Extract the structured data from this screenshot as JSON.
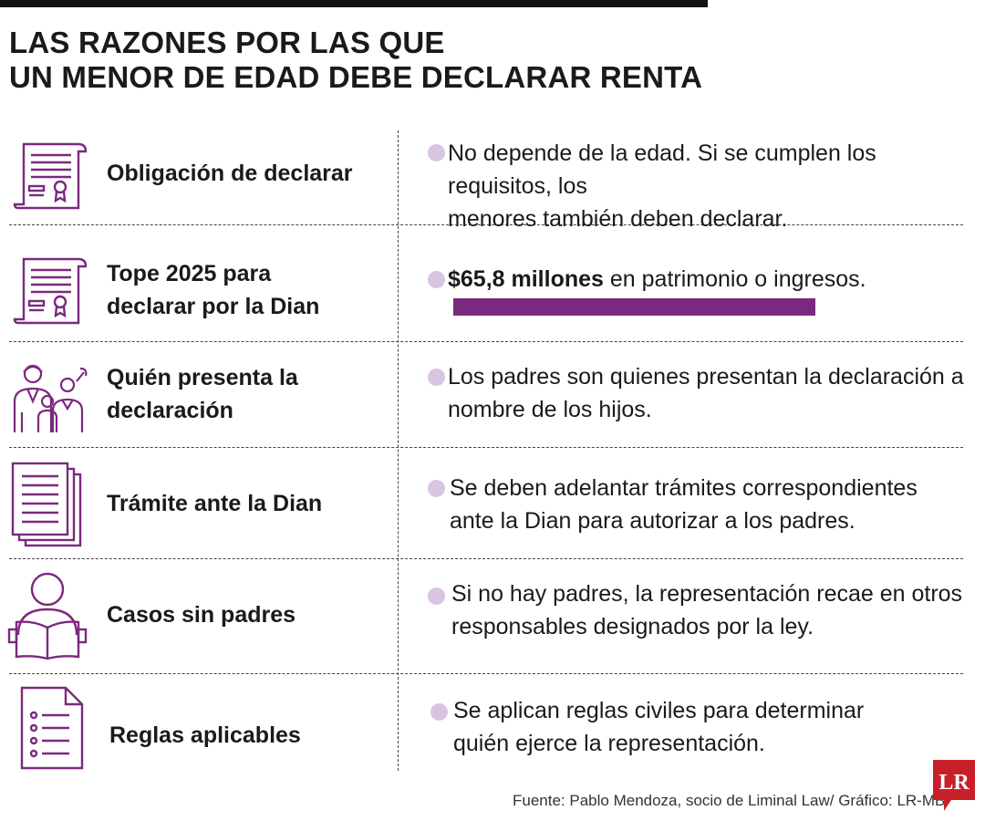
{
  "title": {
    "line1": "LAS RAZONES POR LAS QUE",
    "line2": "UN MENOR DE EDAD DEBE DECLARAR RENTA"
  },
  "rows": [
    {
      "icon": "certificate-icon",
      "label": "Obligación de declarar",
      "desc_lines": [
        "No depende de la edad. Si se cumplen los requisitos, los",
        "menores también deben declarar."
      ]
    },
    {
      "icon": "certificate-icon",
      "label_lines": [
        "Tope 2025 para",
        "declarar por la Dian"
      ],
      "desc_bold": "$65,8 millones",
      "desc_rest": " en patrimonio o ingresos."
    },
    {
      "icon": "parents-children-icon",
      "label_lines": [
        "Quién presenta la",
        "declaración"
      ],
      "desc_lines": [
        "Los padres son quienes presentan la declaración a",
        "nombre de los hijos."
      ]
    },
    {
      "icon": "documents-stack-icon",
      "label": "Trámite ante la Dian",
      "desc_lines": [
        "Se deben adelantar trámites correspondientes",
        "ante la Dian para autorizar a los padres."
      ]
    },
    {
      "icon": "person-reading-icon",
      "label": "Casos sin padres",
      "desc_lines": [
        "Si no hay padres, la representación recae en otros",
        "responsables designados por la ley."
      ]
    },
    {
      "icon": "checklist-icon",
      "label": "Reglas aplicables",
      "desc_lines": [
        "Se aplican reglas civiles para determinar",
        "quién ejerce la representación."
      ]
    }
  ],
  "colors": {
    "accent": "#7a2a7e",
    "bullet": "#d9c4e2",
    "logo": "#c8202a"
  },
  "source": "Fuente: Pablo Mendoza, socio de Liminal Law/ Gráfico: LR-MB",
  "logo_text": "LR"
}
